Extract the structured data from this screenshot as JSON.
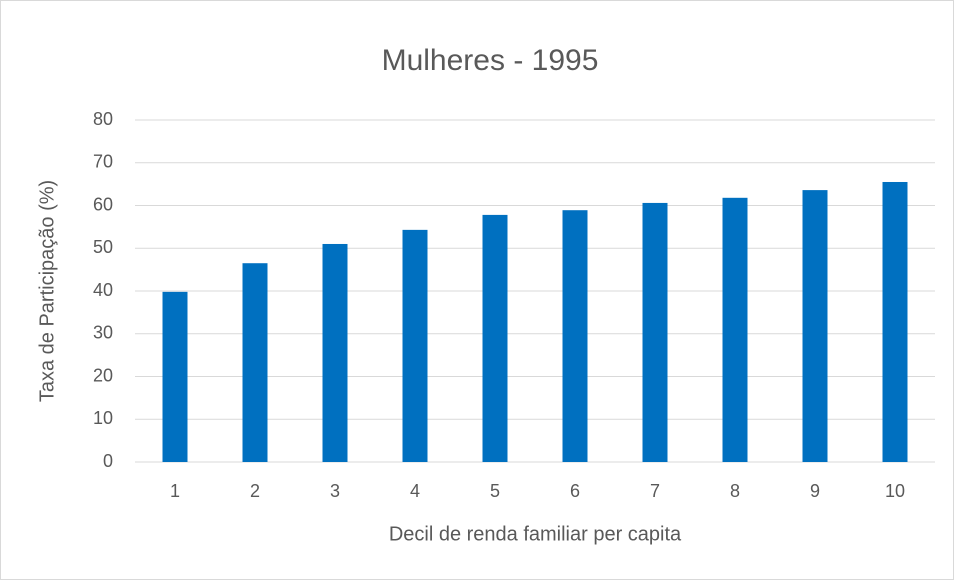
{
  "chart_data": {
    "type": "bar",
    "title": "Mulheres - 1995",
    "x_label": "Decil de renda familiar per capita",
    "y_label": "Taxa de Participação (%)",
    "categories": [
      "1",
      "2",
      "3",
      "4",
      "5",
      "6",
      "7",
      "8",
      "9",
      "10"
    ],
    "values": [
      39.8,
      46.5,
      51.0,
      54.3,
      57.8,
      58.9,
      60.6,
      61.8,
      63.6,
      65.5
    ],
    "color": "#0070c0",
    "ylim": [
      0,
      80
    ],
    "yticks": [
      0,
      10,
      20,
      30,
      40,
      50,
      60,
      70,
      80
    ],
    "grid": true
  }
}
